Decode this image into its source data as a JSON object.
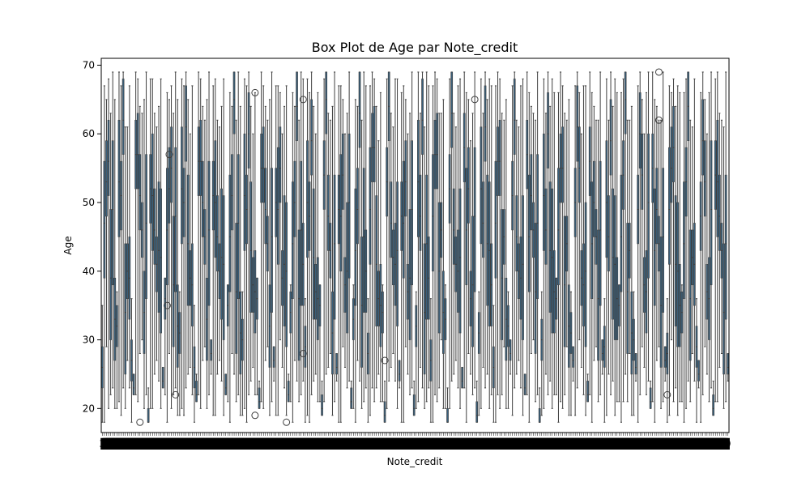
{
  "chart_data": {
    "type": "box",
    "title": "Box Plot de Age par Note_credit",
    "xlabel": "Note_credit",
    "ylabel": "Age",
    "ylim": [
      16.5,
      71.0
    ],
    "y_ticks": [
      20,
      30,
      40,
      50,
      60,
      70
    ],
    "x_tick_labels_visible": [
      "3",
      "9"
    ],
    "category_count": 300,
    "box_fill": "#3a5f7a",
    "line_color": "#3f3f3f",
    "boxes": [
      {
        "q1": 28,
        "median": 31,
        "q3": 34,
        "wmin": 19,
        "wmax": 37
      },
      {
        "q1": 55,
        "median": 60,
        "q3": 66,
        "wmin": 22,
        "wmax": 69
      },
      {
        "q1": 30,
        "median": 36,
        "q3": 42,
        "wmin": 21,
        "wmax": 66
      },
      {
        "q1": 48,
        "median": 53,
        "q3": 58,
        "wmin": 20,
        "wmax": 68
      },
      {
        "q1": 37,
        "median": 41,
        "q3": 45,
        "wmin": 27,
        "wmax": 61
      },
      {
        "q1": 22,
        "median": 23,
        "q3": 25,
        "wmin": 22,
        "wmax": 25
      },
      {
        "q1": 45,
        "median": 50,
        "q3": 56,
        "wmin": 27,
        "wmax": 64
      },
      {
        "q1": 34,
        "median": 45,
        "q3": 55,
        "wmin": 21,
        "wmax": 69
      },
      {
        "q1": 40,
        "median": 48,
        "q3": 57,
        "wmin": 18,
        "wmax": 67
      },
      {
        "q1": 30,
        "median": 39,
        "q3": 49,
        "wmin": 22,
        "wmax": 63
      }
    ],
    "outliers": [
      {
        "index": 18,
        "value": 18
      },
      {
        "index": 31,
        "value": 35
      },
      {
        "index": 32,
        "value": 57
      },
      {
        "index": 35,
        "value": 22
      },
      {
        "index": 73,
        "value": 66
      },
      {
        "index": 73,
        "value": 19
      },
      {
        "index": 88,
        "value": 18
      },
      {
        "index": 96,
        "value": 65
      },
      {
        "index": 96,
        "value": 28
      },
      {
        "index": 135,
        "value": 27
      },
      {
        "index": 178,
        "value": 65
      },
      {
        "index": 266,
        "value": 69
      },
      {
        "index": 266,
        "value": 62
      },
      {
        "index": 270,
        "value": 22
      }
    ]
  }
}
